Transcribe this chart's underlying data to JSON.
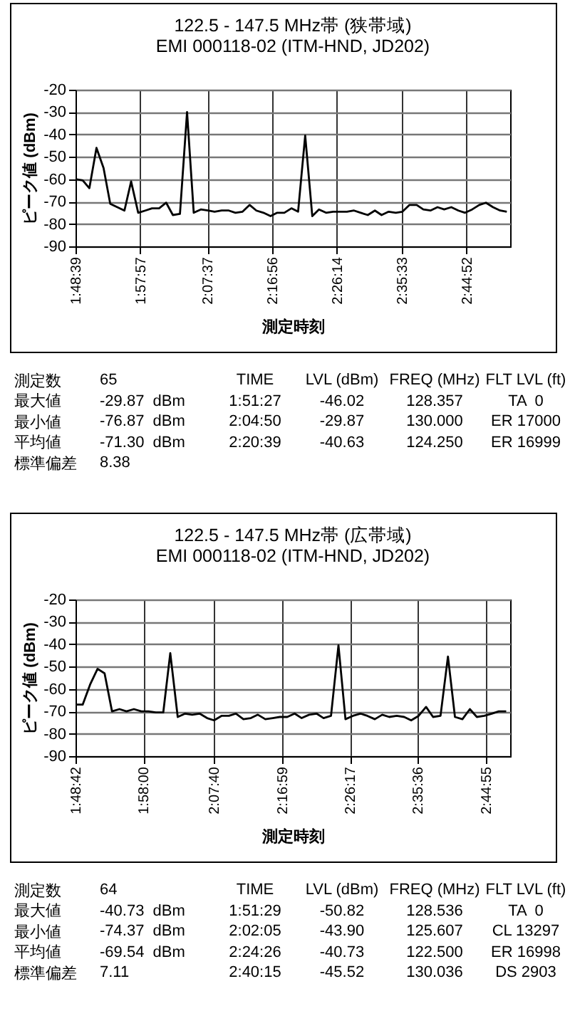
{
  "chart_data": [
    {
      "type": "line",
      "title": "122.5 - 147.5 MHz帯 (狭帯域)",
      "subtitle": "EMI 000118-02 (ITM-HND, JD202)",
      "xlabel": "測定時刻",
      "ylabel": "ピーク値 (dBm)",
      "x": [
        1.811,
        1.828,
        1.844,
        1.861,
        1.878,
        1.894,
        1.911,
        1.928,
        1.944,
        1.961,
        1.978,
        1.994,
        2.011,
        2.028,
        2.044,
        2.061,
        2.078,
        2.094,
        2.111,
        2.128,
        2.144,
        2.161,
        2.178,
        2.194,
        2.211,
        2.228,
        2.244,
        2.261,
        2.278,
        2.294,
        2.311,
        2.328,
        2.344,
        2.361,
        2.378,
        2.394,
        2.411,
        2.428,
        2.444,
        2.461,
        2.478,
        2.494,
        2.511,
        2.528,
        2.544,
        2.561,
        2.578,
        2.594,
        2.611,
        2.628,
        2.644,
        2.661,
        2.678,
        2.694,
        2.711,
        2.728,
        2.744,
        2.761,
        2.778,
        2.794,
        2.811,
        2.828,
        2.844
      ],
      "series": [
        {
          "color": "#000000",
          "values": [
            -60,
            -60.5,
            -64,
            -46,
            -55,
            -71,
            -72.5,
            -74,
            -61,
            -75,
            -74,
            -73,
            -73,
            -70.5,
            -76,
            -75.5,
            -30,
            -75,
            -73.5,
            -74,
            -74.5,
            -74,
            -74,
            -75,
            -74.5,
            -71.5,
            -74,
            -75,
            -76.5,
            -75,
            -75,
            -73,
            -74.5,
            -40.5,
            -76.5,
            -73.5,
            -75,
            -74.5,
            -74.5,
            -74.5,
            -74,
            -75,
            -76,
            -74,
            -76,
            -74.5,
            -75,
            -74.5,
            -71.5,
            -71.5,
            -73.5,
            -74,
            -72.5,
            -73.5,
            -72.5,
            -74,
            -75,
            -73.5,
            -71.5,
            -70.5,
            -72.5,
            -74,
            -74.5
          ]
        }
      ],
      "xlim": [
        1.81083,
        2.852
      ],
      "xticks": [
        {
          "value": 1.81083,
          "label": "1:48:39"
        },
        {
          "value": 1.96583,
          "label": "1:57:57"
        },
        {
          "value": 2.12694,
          "label": "2:07:37"
        },
        {
          "value": 2.28222,
          "label": "2:16:56"
        },
        {
          "value": 2.43722,
          "label": "2:26:14"
        },
        {
          "value": 2.5925,
          "label": "2:35:33"
        },
        {
          "value": 2.74778,
          "label": "2:44:52"
        }
      ],
      "ylim": [
        -90,
        -20
      ],
      "yticks": [
        -90,
        -80,
        -70,
        -60,
        -50,
        -40,
        -30,
        -20
      ],
      "grid": true,
      "annotations": [
        "測定数",
        "65",
        "最大値",
        "-29.87  dBm",
        "最小値",
        "-76.87  dBm",
        "平均値",
        "-71.30  dBm",
        "標準偏差",
        "8.38",
        "TIME",
        "LVL (dBm)",
        "FREQ (MHz)",
        "FLT LVL (ft)",
        "1:51:27",
        "-46.02",
        "128.357",
        "TA  0",
        "2:04:50",
        "-29.87",
        "130.000",
        "ER 17000",
        "2:20:39",
        "-40.63",
        "124.250",
        "ER 16999"
      ]
    },
    {
      "type": "line",
      "title": "122.5 - 147.5 MHz帯 (広帯域)",
      "subtitle": "EMI 000118-02 (ITM-HND, JD202)",
      "xlabel": "測定時刻",
      "ylabel": "ピーク値 (dBm)",
      "x": [
        1.812,
        1.828,
        1.845,
        1.862,
        1.878,
        1.895,
        1.912,
        1.928,
        1.945,
        1.962,
        1.978,
        1.995,
        2.012,
        2.028,
        2.045,
        2.062,
        2.078,
        2.095,
        2.112,
        2.128,
        2.145,
        2.162,
        2.178,
        2.195,
        2.212,
        2.228,
        2.245,
        2.262,
        2.278,
        2.295,
        2.312,
        2.328,
        2.345,
        2.362,
        2.378,
        2.395,
        2.412,
        2.428,
        2.445,
        2.462,
        2.478,
        2.495,
        2.512,
        2.528,
        2.545,
        2.562,
        2.578,
        2.595,
        2.612,
        2.628,
        2.645,
        2.662,
        2.678,
        2.695,
        2.712,
        2.728,
        2.745,
        2.762,
        2.778,
        2.795
      ],
      "series": [
        {
          "color": "#000000",
          "values": [
            -67,
            -67,
            -58,
            -51,
            -53,
            -70,
            -69,
            -70,
            -69,
            -70,
            -70,
            -70.5,
            -70.5,
            -44,
            -72.5,
            -71,
            -71.5,
            -71,
            -73,
            -74,
            -72,
            -72,
            -71,
            -73.5,
            -73,
            -71.5,
            -73.5,
            -73,
            -72.5,
            -72.5,
            -71,
            -73,
            -71.5,
            -71,
            -73,
            -72,
            -40.5,
            -73.5,
            -72,
            -71,
            -72,
            -73.5,
            -71.5,
            -72.5,
            -72,
            -72.5,
            -74,
            -72,
            -68,
            -72.5,
            -72,
            -45.5,
            -72.5,
            -73.5,
            -69,
            -72.5,
            -72,
            -71,
            -70,
            -70
          ]
        }
      ],
      "xlim": [
        1.81167,
        2.804
      ],
      "xticks": [
        {
          "value": 1.81167,
          "label": "1:48:42"
        },
        {
          "value": 1.96667,
          "label": "1:58:00"
        },
        {
          "value": 2.12778,
          "label": "2:07:40"
        },
        {
          "value": 2.28306,
          "label": "2:16:59"
        },
        {
          "value": 2.43806,
          "label": "2:26:17"
        },
        {
          "value": 2.59333,
          "label": "2:35:36"
        },
        {
          "value": 2.74861,
          "label": "2:44:55"
        }
      ],
      "ylim": [
        -90,
        -20
      ],
      "yticks": [
        -90,
        -80,
        -70,
        -60,
        -50,
        -40,
        -30,
        -20
      ],
      "grid": true,
      "annotations": [
        "測定数",
        "64",
        "最大値",
        "-40.73  dBm",
        "最小値",
        "-74.37  dBm",
        "平均値",
        "-69.54  dBm",
        "標準偏差",
        "7.11",
        "TIME",
        "LVL (dBm)",
        "FREQ (MHz)",
        "FLT LVL (ft)",
        "1:51:29",
        "-50.82",
        "128.536",
        "TA  0",
        "2:02:05",
        "-43.90",
        "125.607",
        "CL 13297",
        "2:24:26",
        "-40.73",
        "122.500",
        "ER 16998",
        "2:40:15",
        "-45.52",
        "130.036",
        "DS 2903"
      ]
    }
  ]
}
